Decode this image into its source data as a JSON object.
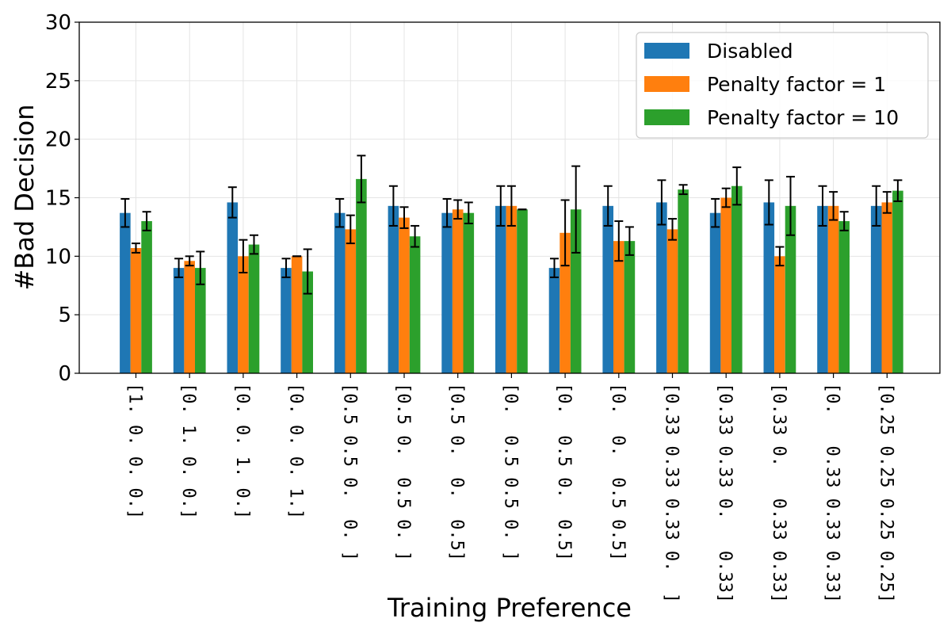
{
  "chart_data": {
    "type": "bar",
    "xlabel": "Training Preference",
    "ylabel": "#Bad Decision",
    "ylim": [
      0,
      30
    ],
    "yticks": [
      0,
      5,
      10,
      15,
      20,
      25,
      30
    ],
    "grid": true,
    "legend_position": "top-right",
    "categories": [
      "[1. 0. 0. 0.]",
      "[0. 1. 0. 0.]",
      "[0. 0. 1. 0.]",
      "[0. 0. 0. 1.]",
      "[0.5 0.5 0.  0. ]",
      "[0.5 0.  0.5 0. ]",
      "[0.5 0.  0.  0.5]",
      "[0.  0.5 0.5 0. ]",
      "[0.  0.5 0.  0.5]",
      "[0.  0.  0.5 0.5]",
      "[0.33 0.33 0.33 0.  ]",
      "[0.33 0.33 0.   0.33]",
      "[0.33 0.   0.33 0.33]",
      "[0.   0.33 0.33 0.33]",
      "[0.25 0.25 0.25 0.25]"
    ],
    "series": [
      {
        "name": "Disabled",
        "color": "#1f77b4",
        "values": [
          13.7,
          9.0,
          14.6,
          9.0,
          13.7,
          14.3,
          13.7,
          14.3,
          9.0,
          14.3,
          14.6,
          13.7,
          14.6,
          14.3,
          14.3
        ],
        "errors": [
          1.2,
          0.8,
          1.3,
          0.8,
          1.2,
          1.7,
          1.2,
          1.7,
          0.8,
          1.7,
          1.9,
          1.2,
          1.9,
          1.7,
          1.7
        ]
      },
      {
        "name": "Penalty factor = 1",
        "color": "#ff7f0e",
        "values": [
          10.7,
          9.6,
          10.0,
          10.0,
          12.3,
          13.3,
          14.0,
          14.3,
          12.0,
          11.3,
          12.3,
          15.0,
          10.0,
          14.3,
          14.6
        ],
        "errors": [
          0.4,
          0.4,
          1.4,
          0.0,
          1.2,
          0.9,
          0.8,
          1.7,
          2.8,
          1.7,
          0.9,
          0.8,
          0.8,
          1.2,
          0.9
        ]
      },
      {
        "name": "Penalty factor = 10",
        "color": "#2ca02c",
        "values": [
          13.0,
          9.0,
          11.0,
          8.7,
          16.6,
          11.7,
          13.7,
          14.0,
          14.0,
          11.3,
          15.7,
          16.0,
          14.3,
          13.0,
          15.6
        ],
        "errors": [
          0.8,
          1.4,
          0.8,
          1.9,
          2.0,
          0.9,
          0.9,
          0.0,
          3.7,
          1.2,
          0.4,
          1.6,
          2.5,
          0.8,
          0.9
        ]
      }
    ]
  }
}
